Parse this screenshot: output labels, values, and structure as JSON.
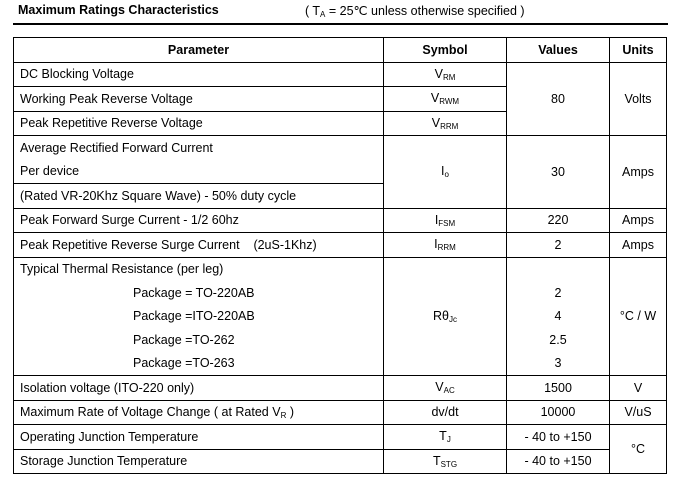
{
  "header": {
    "title": "Maximum Ratings Characteristics",
    "condition": {
      "pre": "( T",
      "sub": "A",
      "post": " = 25℃  unless otherwise specified )"
    }
  },
  "table": {
    "columns": [
      "Parameter",
      "Symbol",
      "Values",
      "Units"
    ],
    "rows": [
      {
        "parameters": [
          "DC Blocking Voltage",
          "Working Peak Reverse Voltage",
          "Peak Repetitive Reverse Voltage"
        ],
        "symbols": [
          {
            "base": "V",
            "sub": "RM"
          },
          {
            "base": "V",
            "sub": "RWM"
          },
          {
            "base": "V",
            "sub": "RRM"
          }
        ],
        "value": 80,
        "unit": "Volts"
      },
      {
        "parameters": [
          "Average Rectified Forward Current",
          "Per device",
          "(Rated VR-20Khz Square Wave) - 50% duty cycle"
        ],
        "symbol": {
          "base": "I",
          "sub": "o"
        },
        "value": 30,
        "unit": "Amps"
      },
      {
        "parameter": "Peak Forward Surge Current - 1/2 60hz",
        "symbol": {
          "base": "I",
          "sub": "FSM"
        },
        "value": 220,
        "unit": "Amps"
      },
      {
        "parameter": "Peak Repetitive Reverse Surge Current    (2uS-1Khz)",
        "symbol": {
          "base": "I",
          "sub": "RRM"
        },
        "value": 2,
        "unit": "Amps"
      },
      {
        "parameter": "Typical Thermal Resistance (per leg)",
        "packages": [
          {
            "label": "Package = TO-220AB",
            "value": 2
          },
          {
            "label": "Package =ITO-220AB",
            "value": 4
          },
          {
            "label": "Package =TO-262",
            "value": 2.5
          },
          {
            "label": "Package =TO-263",
            "value": 3
          }
        ],
        "symbol": {
          "base": "Rθ",
          "sub": "Jc"
        },
        "unit": "°C / W"
      },
      {
        "parameter": "Isolation voltage (ITO-220 only)",
        "symbol": {
          "base": "V",
          "sub": "AC"
        },
        "value": 1500,
        "unit": "V"
      },
      {
        "parameter": {
          "pre": "Maximum Rate of Voltage Change ( at Rated V",
          "sub": "R",
          "post": " )"
        },
        "symbol": "dv/dt",
        "value": 10000,
        "unit": "V/uS"
      },
      {
        "parameters": [
          "Operating Junction Temperature",
          "Storage Junction Temperature"
        ],
        "symbols": [
          {
            "base": "T",
            "sub": "J"
          },
          {
            "base": "T",
            "sub": "STG"
          }
        ],
        "values": [
          "- 40 to +150",
          "- 40 to +150"
        ],
        "unit": "°C"
      }
    ]
  }
}
